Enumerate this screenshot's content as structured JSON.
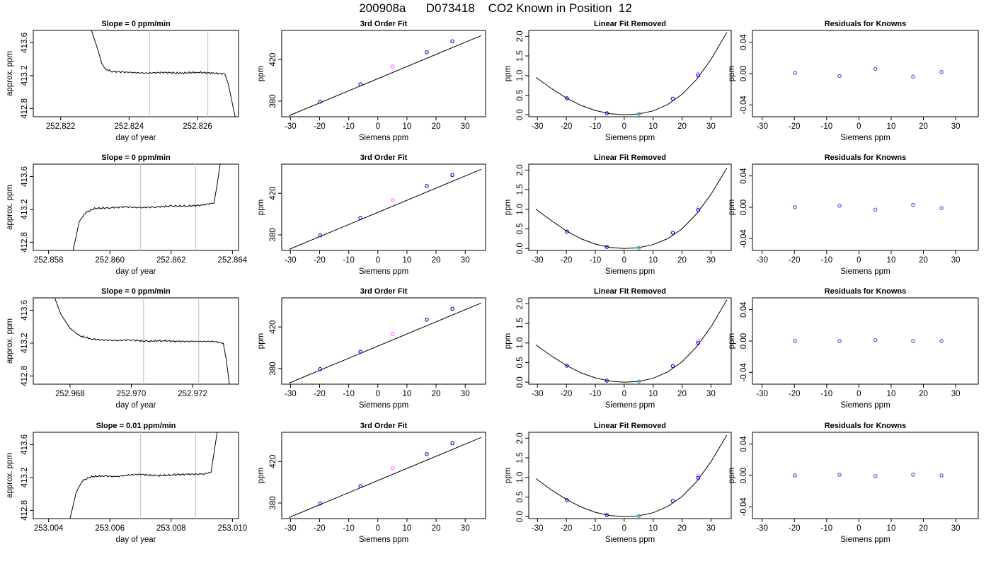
{
  "title": "200908a      D073418    CO2 Known in Position  12",
  "colors": {
    "trace": "#000000",
    "marker_line": "#c8c8c8",
    "point_blue": "#0000cc",
    "point_purple": "#7a2ed6",
    "point_magenta": "#ff66ff",
    "point_cyan": "#2aa8d8"
  },
  "chart_data": [
    {
      "type": "line",
      "row": 1,
      "panel": "trace",
      "title": "Slope =  0  ppm/min",
      "xlabel": "day of year",
      "ylabel": "approx. ppm",
      "xlim": [
        252.8212,
        252.8272
      ],
      "ylim": [
        412.7,
        413.75
      ],
      "xticks": [
        "252.822",
        "252.824",
        "252.826"
      ],
      "yticks": [
        "412.8",
        "413.2",
        "413.6"
      ],
      "markers": [
        252.8246,
        252.8263
      ],
      "series": [
        {
          "x": [
            252.8229,
            252.8231,
            252.8232,
            252.8233,
            252.8235,
            252.824,
            252.8245,
            252.825,
            252.8255,
            252.826,
            252.8265,
            252.8268,
            252.8269,
            252.827,
            252.8271
          ],
          "y": [
            413.75,
            413.5,
            413.35,
            413.28,
            413.25,
            413.24,
            413.23,
            413.24,
            413.23,
            413.24,
            413.23,
            413.22,
            413.1,
            412.9,
            412.7
          ]
        }
      ]
    },
    {
      "type": "line",
      "row": 1,
      "panel": "fit",
      "title": "3rd Order Fit",
      "xlabel": "Siemens ppm",
      "ylabel": "ppm",
      "xlim": [
        -33,
        37
      ],
      "ylim": [
        365,
        448
      ],
      "xticks": [
        "-30",
        "-20",
        "-10",
        "0",
        "10",
        "20",
        "30"
      ],
      "yticks": [
        "380",
        "420"
      ],
      "curve": {
        "x": [
          -30.5,
          35.5
        ],
        "y": [
          366,
          443
        ]
      },
      "points": {
        "x": [
          -19.8,
          -6.0,
          5.1,
          16.8,
          25.6
        ],
        "y": [
          379.5,
          396.2,
          413.3,
          427.0,
          437.5
        ]
      }
    },
    {
      "type": "line",
      "row": 1,
      "panel": "linear_removed",
      "title": "Linear Fit Removed",
      "xlabel": "Siemens ppm",
      "ylabel": "ppm",
      "xlim": [
        -33,
        37
      ],
      "ylim": [
        -0.05,
        2.15
      ],
      "xticks": [
        "-30",
        "-20",
        "-10",
        "0",
        "10",
        "20",
        "30"
      ],
      "yticks": [
        "0.0",
        "0.5",
        "1.0",
        "1.5",
        "2.0"
      ],
      "curve": {
        "x": [
          -30.5,
          -25,
          -20,
          -15,
          -10,
          -5,
          0,
          5,
          10,
          15,
          20,
          25,
          30,
          35.5
        ],
        "y": [
          0.95,
          0.66,
          0.43,
          0.24,
          0.11,
          0.03,
          0.0,
          0.02,
          0.1,
          0.26,
          0.52,
          0.9,
          1.41,
          2.1
        ]
      },
      "points": {
        "x": [
          -19.8,
          -6.0,
          5.1,
          16.8,
          25.6
        ],
        "y": [
          0.42,
          0.04,
          0.02,
          0.41,
          1.0
        ]
      },
      "magenta_points": {
        "x": [
          25.6
        ],
        "y": [
          1.04
        ]
      }
    },
    {
      "type": "scatter",
      "row": 1,
      "panel": "residuals",
      "title": "Residuals for Knowns",
      "xlabel": "Siemens ppm",
      "ylabel": "ppm",
      "xlim": [
        -33,
        37
      ],
      "ylim": [
        -0.055,
        0.055
      ],
      "xticks": [
        "-30",
        "-20",
        "-10",
        "0",
        "10",
        "20",
        "30"
      ],
      "yticks": [
        "-0.04",
        "0.00",
        "0.04"
      ],
      "points": {
        "x": [
          -19.8,
          -6.0,
          5.1,
          16.8,
          25.6
        ],
        "y": [
          0.001,
          -0.003,
          0.006,
          -0.004,
          0.002
        ]
      }
    },
    {
      "type": "line",
      "row": 2,
      "panel": "trace",
      "title": "Slope =  0  ppm/min",
      "xlabel": "day of year",
      "ylabel": "approx. ppm",
      "xlim": [
        252.8575,
        252.8642
      ],
      "ylim": [
        412.7,
        413.75
      ],
      "xticks": [
        "252.858",
        "252.860",
        "252.862",
        "252.864"
      ],
      "yticks": [
        "412.8",
        "413.2",
        "413.6"
      ],
      "markers": [
        252.861,
        252.8628
      ],
      "series": [
        {
          "x": [
            252.8588,
            252.859,
            252.8592,
            252.8595,
            252.86,
            252.8605,
            252.861,
            252.8615,
            252.862,
            252.8625,
            252.863,
            252.8634,
            252.8635,
            252.8636
          ],
          "y": [
            412.7,
            413.05,
            413.16,
            413.21,
            413.22,
            413.23,
            413.22,
            413.23,
            413.24,
            413.24,
            413.25,
            413.28,
            413.5,
            413.75
          ]
        }
      ]
    },
    {
      "type": "line",
      "row": 2,
      "panel": "fit",
      "title": "3rd Order Fit",
      "xlabel": "Siemens ppm",
      "ylabel": "ppm",
      "xlim": [
        -33,
        37
      ],
      "ylim": [
        365,
        448
      ],
      "xticks": [
        "-30",
        "-20",
        "-10",
        "0",
        "10",
        "20",
        "30"
      ],
      "yticks": [
        "380",
        "420"
      ],
      "curve": {
        "x": [
          -30.5,
          35.5
        ],
        "y": [
          366,
          443
        ]
      },
      "points": {
        "x": [
          -19.8,
          -6.0,
          5.1,
          16.8,
          25.6
        ],
        "y": [
          379.5,
          396.2,
          413.3,
          427.0,
          437.5
        ]
      }
    },
    {
      "type": "line",
      "row": 2,
      "panel": "linear_removed",
      "title": "Linear Fit Removed",
      "xlabel": "Siemens ppm",
      "ylabel": "ppm",
      "xlim": [
        -33,
        37
      ],
      "ylim": [
        -0.05,
        2.15
      ],
      "xticks": [
        "-30",
        "-20",
        "-10",
        "0",
        "10",
        "20",
        "30"
      ],
      "yticks": [
        "0.0",
        "0.5",
        "1.0",
        "1.5",
        "2.0"
      ],
      "curve": {
        "x": [
          -30.5,
          -25,
          -20,
          -15,
          -10,
          -5,
          0,
          5,
          10,
          15,
          20,
          25,
          30,
          35.5
        ],
        "y": [
          1.0,
          0.7,
          0.45,
          0.25,
          0.11,
          0.03,
          0.0,
          0.02,
          0.1,
          0.25,
          0.5,
          0.88,
          1.38,
          2.05
        ]
      },
      "points": {
        "x": [
          -19.8,
          -6.0,
          5.1,
          16.8,
          25.6
        ],
        "y": [
          0.43,
          0.04,
          0.02,
          0.4,
          0.98
        ]
      },
      "magenta_points": {
        "x": [
          25.6
        ],
        "y": [
          1.03
        ]
      }
    },
    {
      "type": "scatter",
      "row": 2,
      "panel": "residuals",
      "title": "Residuals for Knowns",
      "xlabel": "Siemens ppm",
      "ylabel": "ppm",
      "xlim": [
        -33,
        37
      ],
      "ylim": [
        -0.055,
        0.055
      ],
      "xticks": [
        "-30",
        "-20",
        "-10",
        "0",
        "10",
        "20",
        "30"
      ],
      "yticks": [
        "-0.04",
        "0.00",
        "0.04"
      ],
      "points": {
        "x": [
          -19.8,
          -6.0,
          5.1,
          16.8,
          25.6
        ],
        "y": [
          0.0,
          0.002,
          -0.003,
          0.003,
          -0.001
        ]
      }
    },
    {
      "type": "line",
      "row": 3,
      "panel": "trace",
      "title": "Slope =  0  ppm/min",
      "xlabel": "day of year",
      "ylabel": "approx. ppm",
      "xlim": [
        252.9668,
        252.9735
      ],
      "ylim": [
        412.7,
        413.75
      ],
      "xticks": [
        "252.968",
        "252.970",
        "252.972"
      ],
      "yticks": [
        "412.8",
        "413.2",
        "413.6"
      ],
      "markers": [
        252.9704,
        252.9722
      ],
      "series": [
        {
          "x": [
            252.9675,
            252.9677,
            252.968,
            252.9683,
            252.9687,
            252.969,
            252.9695,
            252.97,
            252.9705,
            252.971,
            252.9715,
            252.972,
            252.9727,
            252.973,
            252.9731,
            252.9732
          ],
          "y": [
            413.75,
            413.55,
            413.38,
            413.29,
            413.25,
            413.24,
            413.23,
            413.24,
            413.22,
            413.23,
            413.22,
            413.22,
            413.22,
            413.2,
            413.0,
            412.7
          ]
        }
      ]
    },
    {
      "type": "line",
      "row": 3,
      "panel": "fit",
      "title": "3rd Order Fit",
      "xlabel": "Siemens ppm",
      "ylabel": "ppm",
      "xlim": [
        -33,
        37
      ],
      "ylim": [
        365,
        448
      ],
      "xticks": [
        "-30",
        "-20",
        "-10",
        "0",
        "10",
        "20",
        "30"
      ],
      "yticks": [
        "380",
        "420"
      ],
      "curve": {
        "x": [
          -30.5,
          35.5
        ],
        "y": [
          366,
          443
        ]
      },
      "points": {
        "x": [
          -19.8,
          -6.0,
          5.1,
          16.8,
          25.6
        ],
        "y": [
          379.5,
          396.2,
          413.3,
          427.0,
          437.5
        ]
      }
    },
    {
      "type": "line",
      "row": 3,
      "panel": "linear_removed",
      "title": "Linear Fit Removed",
      "xlabel": "Siemens ppm",
      "ylabel": "ppm",
      "xlim": [
        -33,
        37
      ],
      "ylim": [
        -0.05,
        2.15
      ],
      "xticks": [
        "-30",
        "-20",
        "-10",
        "0",
        "10",
        "20",
        "30"
      ],
      "yticks": [
        "0.0",
        "0.5",
        "1.0",
        "1.5",
        "2.0"
      ],
      "curve": {
        "x": [
          -30.5,
          -25,
          -20,
          -15,
          -10,
          -5,
          0,
          5,
          10,
          15,
          20,
          25,
          30,
          35.5
        ],
        "y": [
          0.95,
          0.66,
          0.43,
          0.24,
          0.11,
          0.03,
          0.0,
          0.02,
          0.1,
          0.26,
          0.52,
          0.9,
          1.41,
          2.1
        ]
      },
      "points": {
        "x": [
          -19.8,
          -6.0,
          5.1,
          16.8,
          25.6
        ],
        "y": [
          0.42,
          0.04,
          0.02,
          0.41,
          1.0
        ]
      },
      "magenta_points": {
        "x": [
          25.6
        ],
        "y": [
          1.04
        ]
      }
    },
    {
      "type": "scatter",
      "row": 3,
      "panel": "residuals",
      "title": "Residuals for Knowns",
      "xlabel": "Siemens ppm",
      "ylabel": "ppm",
      "xlim": [
        -33,
        37
      ],
      "ylim": [
        -0.055,
        0.055
      ],
      "xticks": [
        "-30",
        "-20",
        "-10",
        "0",
        "10",
        "20",
        "30"
      ],
      "yticks": [
        "-0.04",
        "0.00",
        "0.04"
      ],
      "points": {
        "x": [
          -19.8,
          -6.0,
          5.1,
          16.8,
          25.6
        ],
        "y": [
          0.0,
          0.0,
          0.001,
          0.0,
          0.0
        ]
      }
    },
    {
      "type": "line",
      "row": 4,
      "panel": "trace",
      "title": "Slope =  0.01  ppm/min",
      "xlabel": "day of year",
      "ylabel": "approx. ppm",
      "xlim": [
        253.0035,
        253.0102
      ],
      "ylim": [
        412.7,
        413.75
      ],
      "xticks": [
        "253.004",
        "253.006",
        "253.008",
        "253.010"
      ],
      "yticks": [
        "412.8",
        "413.2",
        "413.6"
      ],
      "markers": [
        253.007,
        253.0088
      ],
      "series": [
        {
          "x": [
            253.0047,
            253.0049,
            253.0051,
            253.0054,
            253.0058,
            253.0062,
            253.0066,
            253.007,
            253.0075,
            253.008,
            253.0085,
            253.009,
            253.0093,
            253.0094,
            253.0095
          ],
          "y": [
            412.7,
            413.02,
            413.16,
            413.21,
            413.22,
            413.21,
            413.23,
            413.24,
            413.22,
            413.23,
            413.24,
            413.24,
            413.26,
            413.5,
            413.75
          ]
        }
      ]
    },
    {
      "type": "line",
      "row": 4,
      "panel": "fit",
      "title": "3rd Order Fit",
      "xlabel": "Siemens ppm",
      "ylabel": "ppm",
      "xlim": [
        -33,
        37
      ],
      "ylim": [
        365,
        448
      ],
      "xticks": [
        "-30",
        "-20",
        "-10",
        "0",
        "10",
        "20",
        "30"
      ],
      "yticks": [
        "380",
        "420"
      ],
      "curve": {
        "x": [
          -30.5,
          35.5
        ],
        "y": [
          366,
          443
        ]
      },
      "points": {
        "x": [
          -19.8,
          -6.0,
          5.1,
          16.8,
          25.6
        ],
        "y": [
          379.5,
          396.2,
          413.3,
          427.0,
          437.5
        ]
      }
    },
    {
      "type": "line",
      "row": 4,
      "panel": "linear_removed",
      "title": "Linear Fit Removed",
      "xlabel": "Siemens ppm",
      "ylabel": "ppm",
      "xlim": [
        -33,
        37
      ],
      "ylim": [
        -0.05,
        2.15
      ],
      "xticks": [
        "-30",
        "-20",
        "-10",
        "0",
        "10",
        "20",
        "30"
      ],
      "yticks": [
        "0.0",
        "0.5",
        "1.0",
        "1.5",
        "2.0"
      ],
      "curve": {
        "x": [
          -30.5,
          -25,
          -20,
          -15,
          -10,
          -5,
          0,
          5,
          10,
          15,
          20,
          25,
          30,
          35.5
        ],
        "y": [
          0.97,
          0.67,
          0.44,
          0.25,
          0.11,
          0.03,
          0.0,
          0.02,
          0.1,
          0.26,
          0.51,
          0.89,
          1.4,
          2.08
        ]
      },
      "points": {
        "x": [
          -19.8,
          -6.0,
          5.1,
          16.8,
          25.6
        ],
        "y": [
          0.42,
          0.04,
          0.02,
          0.4,
          0.99
        ]
      },
      "magenta_points": {
        "x": [
          25.6
        ],
        "y": [
          1.04
        ]
      }
    },
    {
      "type": "scatter",
      "row": 4,
      "panel": "residuals",
      "title": "Residuals for Knowns",
      "xlabel": "Siemens ppm",
      "ylabel": "ppm",
      "xlim": [
        -33,
        37
      ],
      "ylim": [
        -0.055,
        0.055
      ],
      "xticks": [
        "-30",
        "-20",
        "-10",
        "0",
        "10",
        "20",
        "30"
      ],
      "yticks": [
        "-0.04",
        "0.00",
        "0.04"
      ],
      "points": {
        "x": [
          -19.8,
          -6.0,
          5.1,
          16.8,
          25.6
        ],
        "y": [
          0.0,
          0.001,
          -0.001,
          0.001,
          0.0
        ]
      }
    }
  ]
}
